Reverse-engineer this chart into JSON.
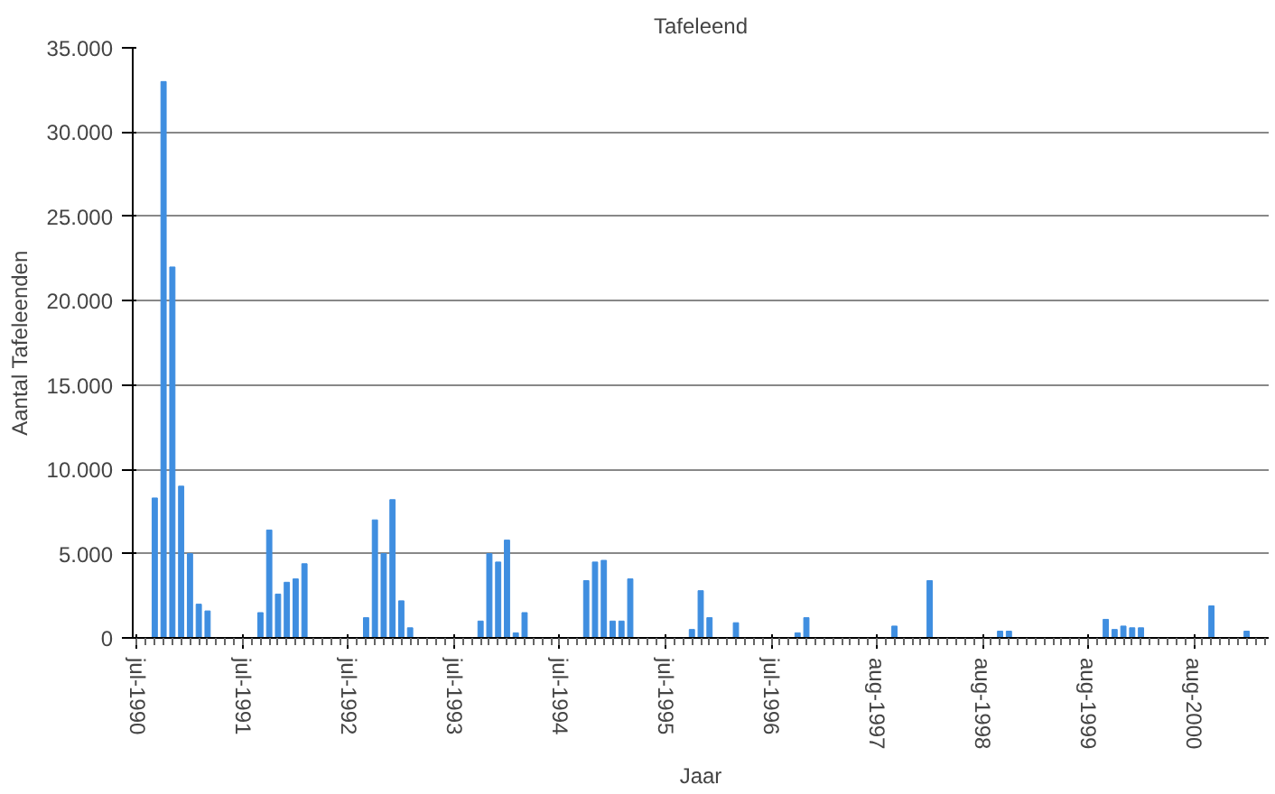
{
  "chart_data": {
    "type": "bar",
    "title": "Tafeleend",
    "xlabel": "Jaar",
    "ylabel": "Aantal Tafeleenden",
    "categories": [
      "jul-1990",
      null,
      null,
      null,
      null,
      null,
      null,
      null,
      null,
      null,
      null,
      null,
      "jul-1991",
      null,
      null,
      null,
      null,
      null,
      null,
      null,
      null,
      null,
      null,
      null,
      "jul-1992",
      null,
      null,
      null,
      null,
      null,
      null,
      null,
      null,
      null,
      null,
      null,
      "jul-1993",
      null,
      null,
      null,
      null,
      null,
      null,
      null,
      null,
      null,
      null,
      null,
      "jul-1994",
      null,
      null,
      null,
      null,
      null,
      null,
      null,
      null,
      null,
      null,
      null,
      "jul-1995",
      null,
      null,
      null,
      null,
      null,
      null,
      null,
      null,
      null,
      null,
      null,
      "jul-1996",
      null,
      null,
      null,
      null,
      null,
      null,
      null,
      null,
      null,
      null,
      null,
      "aug-1997",
      null,
      null,
      null,
      null,
      null,
      null,
      null,
      null,
      null,
      null,
      null,
      "aug-1998",
      null,
      null,
      null,
      null,
      null,
      null,
      null,
      null,
      null,
      null,
      null,
      "aug-1999",
      null,
      null,
      null,
      null,
      null,
      null,
      null,
      null,
      null,
      null,
      null,
      "aug-2000",
      null,
      null,
      null,
      null,
      null,
      null,
      null,
      null
    ],
    "values": [
      0,
      0,
      8300,
      33000,
      22000,
      9000,
      5000,
      2000,
      1600,
      0,
      0,
      0,
      0,
      0,
      1500,
      6400,
      2600,
      3300,
      3500,
      4400,
      0,
      0,
      0,
      0,
      0,
      0,
      1200,
      7000,
      5000,
      8200,
      2200,
      600,
      0,
      0,
      0,
      0,
      0,
      0,
      0,
      1000,
      5000,
      4500,
      5800,
      300,
      1500,
      0,
      0,
      0,
      0,
      0,
      0,
      3400,
      4500,
      4600,
      1000,
      1000,
      3500,
      0,
      0,
      0,
      0,
      0,
      0,
      500,
      2800,
      1200,
      0,
      0,
      900,
      0,
      0,
      0,
      0,
      0,
      0,
      300,
      1200,
      0,
      0,
      0,
      0,
      0,
      0,
      0,
      0,
      0,
      700,
      0,
      0,
      0,
      3400,
      0,
      0,
      0,
      0,
      0,
      0,
      0,
      400,
      400,
      0,
      0,
      0,
      0,
      0,
      0,
      0,
      0,
      0,
      0,
      1100,
      500,
      700,
      600,
      600,
      0,
      0,
      0,
      0,
      0,
      0,
      0,
      1900,
      0,
      0,
      0,
      400,
      0,
      0
    ],
    "color": "#3f8ee0",
    "ylim": [
      0,
      35000
    ],
    "yticks": [
      0,
      {
        "value": 5000,
        "label": "5.000"
      },
      {
        "value": 10000,
        "label": "10.000"
      },
      {
        "value": 15000,
        "label": "15.000"
      },
      {
        "value": 20000,
        "label": "20.000"
      },
      {
        "value": 25000,
        "label": "25.000"
      },
      {
        "value": 30000,
        "label": "30.000"
      },
      {
        "value": 35000,
        "label": "35.000"
      }
    ],
    "grid": "y"
  }
}
